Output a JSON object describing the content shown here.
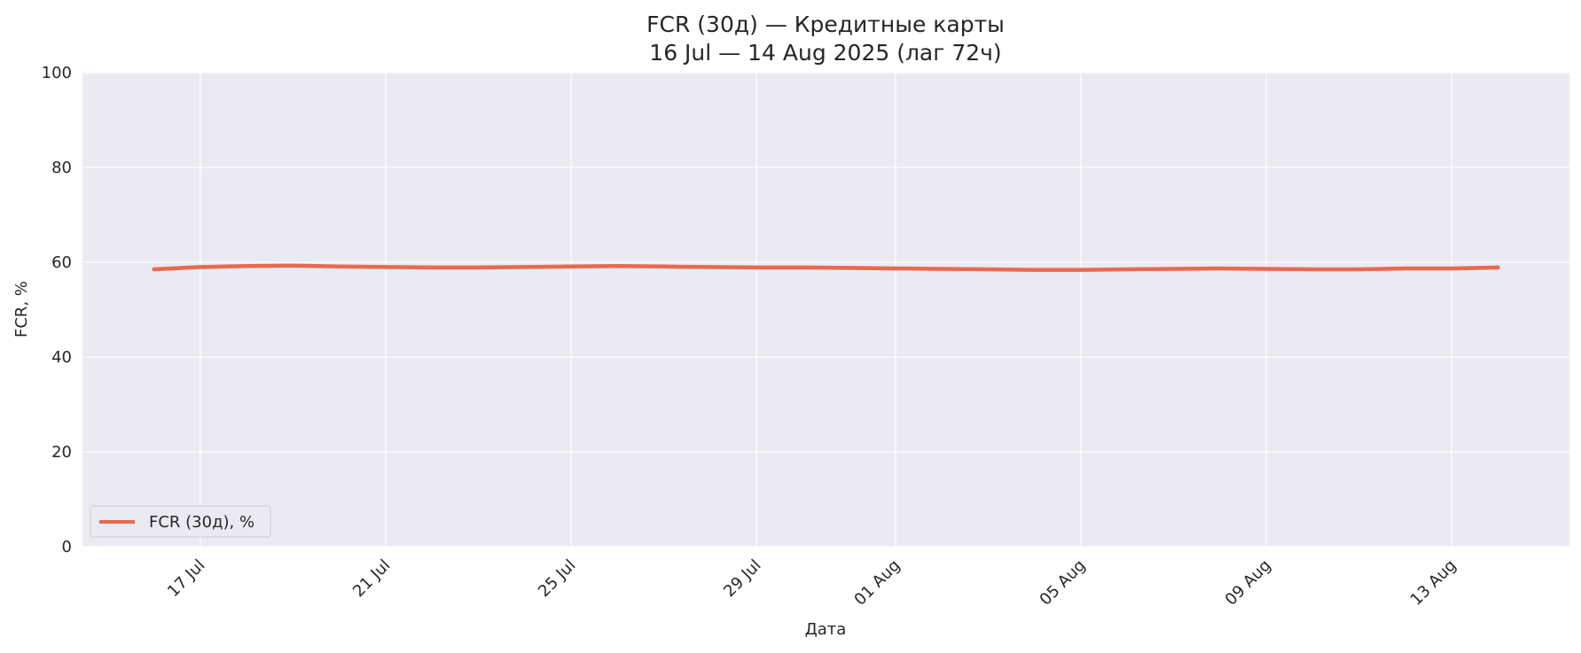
{
  "chart_data": {
    "type": "line",
    "title": "FCR (30д) — Кредитные карты",
    "subtitle": "16 Jul — 14 Aug 2025 (лаг 72ч)",
    "xlabel": "Дата",
    "ylabel": "FCR, %",
    "ylim": [
      0,
      100
    ],
    "yticks": [
      0,
      20,
      40,
      60,
      80,
      100
    ],
    "xlim": [
      "2025-07-14T11:00",
      "2025-08-15T13:00"
    ],
    "xticks": [
      {
        "date": "2025-07-17",
        "label": "17 Jul"
      },
      {
        "date": "2025-07-21",
        "label": "21 Jul"
      },
      {
        "date": "2025-07-25",
        "label": "25 Jul"
      },
      {
        "date": "2025-07-29",
        "label": "29 Jul"
      },
      {
        "date": "2025-08-01",
        "label": "01 Aug"
      },
      {
        "date": "2025-08-05",
        "label": "05 Aug"
      },
      {
        "date": "2025-08-09",
        "label": "09 Aug"
      },
      {
        "date": "2025-08-13",
        "label": "13 Aug"
      }
    ],
    "grid": true,
    "legend_position": "lower-left",
    "colors": {
      "plot_background": "#eaeaf2",
      "grid": "#ffffff",
      "line": "#e8694f"
    },
    "series": [
      {
        "name": "FCR (30д), %",
        "x": [
          "2025-07-16",
          "2025-07-17",
          "2025-07-18",
          "2025-07-19",
          "2025-07-20",
          "2025-07-21",
          "2025-07-22",
          "2025-07-23",
          "2025-07-24",
          "2025-07-25",
          "2025-07-26",
          "2025-07-27",
          "2025-07-28",
          "2025-07-29",
          "2025-07-30",
          "2025-07-31",
          "2025-08-01",
          "2025-08-02",
          "2025-08-03",
          "2025-08-04",
          "2025-08-05",
          "2025-08-06",
          "2025-08-07",
          "2025-08-08",
          "2025-08-09",
          "2025-08-10",
          "2025-08-11",
          "2025-08-12",
          "2025-08-13",
          "2025-08-14"
        ],
        "values": [
          58.5,
          59.0,
          59.2,
          59.3,
          59.1,
          59.0,
          58.9,
          58.9,
          59.0,
          59.1,
          59.2,
          59.1,
          59.0,
          58.9,
          58.9,
          58.8,
          58.7,
          58.6,
          58.5,
          58.4,
          58.4,
          58.5,
          58.6,
          58.7,
          58.6,
          58.5,
          58.5,
          58.7,
          58.7,
          58.9
        ]
      }
    ]
  }
}
